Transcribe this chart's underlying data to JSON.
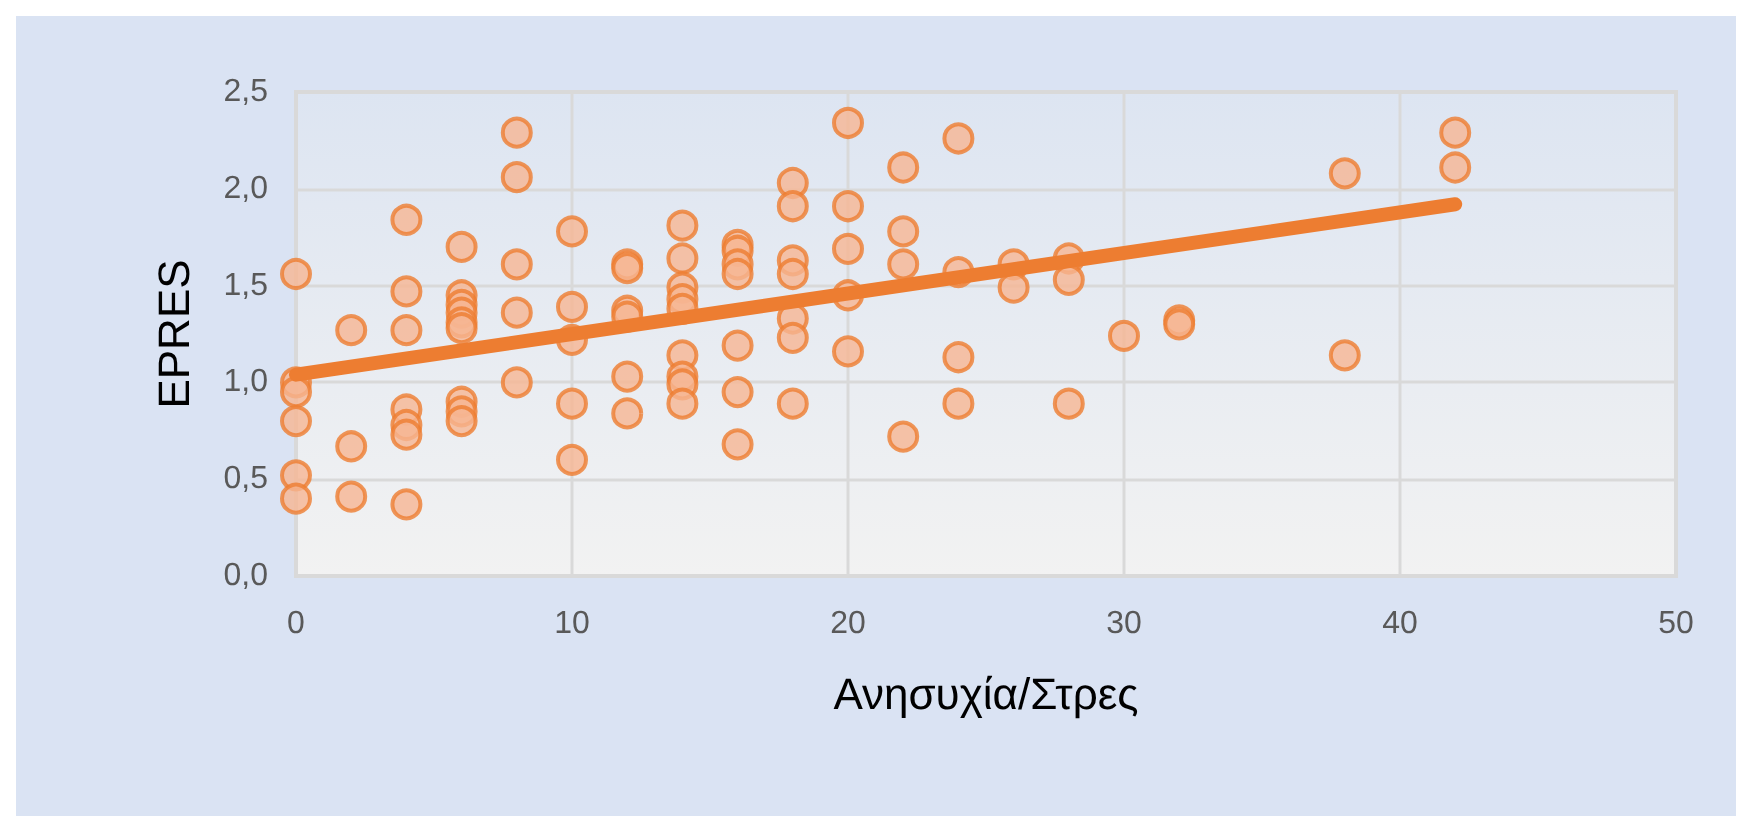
{
  "chart_data": {
    "type": "scatter",
    "xlabel": "Ανησυχία/Στρες",
    "ylabel": "EPRES",
    "xlim": [
      0,
      50
    ],
    "xticks": [
      0,
      10,
      20,
      30,
      40,
      50
    ],
    "ylim": [
      0,
      2.5
    ],
    "yticks": [
      {
        "value": 0,
        "label": "0,0"
      },
      {
        "value": 0.5,
        "label": "0,5"
      },
      {
        "value": 1,
        "label": "1,0"
      },
      {
        "value": 1.5,
        "label": "1,5"
      },
      {
        "value": 2,
        "label": "2,0"
      },
      {
        "value": 2.5,
        "label": "2,5"
      }
    ],
    "grid": true,
    "marker": "circle",
    "series": [
      {
        "color": "#ed7d31",
        "x": [
          0,
          0,
          0,
          0,
          0,
          0,
          2,
          2,
          2,
          4,
          4,
          4,
          4,
          4,
          4,
          4,
          6,
          6,
          6,
          6,
          6,
          6,
          6,
          6,
          6,
          8,
          8,
          8,
          8,
          8,
          10,
          10,
          10,
          10,
          10,
          12,
          12,
          12,
          12,
          12,
          12,
          14,
          14,
          14,
          14,
          14,
          14,
          14,
          14,
          14,
          16,
          16,
          16,
          16,
          16,
          16,
          16,
          18,
          18,
          18,
          18,
          18,
          18,
          18,
          20,
          20,
          20,
          20,
          20,
          22,
          22,
          22,
          22,
          24,
          24,
          24,
          24,
          26,
          26,
          28,
          28,
          28,
          30,
          32,
          32,
          38,
          38,
          42,
          42
        ],
        "values": [
          1.56,
          1.0,
          0.95,
          0.8,
          0.52,
          0.4,
          1.27,
          0.67,
          0.41,
          1.84,
          1.47,
          1.27,
          0.86,
          0.78,
          0.73,
          0.37,
          1.7,
          1.45,
          1.4,
          1.36,
          1.31,
          1.28,
          0.9,
          0.85,
          0.8,
          2.29,
          2.06,
          1.61,
          1.36,
          1.0,
          1.78,
          1.39,
          1.22,
          0.89,
          0.6,
          1.61,
          1.59,
          1.37,
          1.34,
          1.03,
          0.84,
          1.81,
          1.64,
          1.49,
          1.43,
          1.38,
          1.14,
          1.03,
          0.99,
          0.89,
          1.71,
          1.68,
          1.61,
          1.56,
          1.19,
          0.95,
          0.68,
          2.03,
          1.91,
          1.63,
          1.56,
          1.33,
          1.23,
          0.89,
          2.34,
          1.91,
          1.69,
          1.45,
          1.16,
          2.11,
          1.78,
          1.61,
          0.72,
          2.26,
          1.57,
          1.13,
          0.89,
          1.61,
          1.49,
          1.64,
          1.53,
          0.89,
          1.24,
          1.32,
          1.3,
          2.08,
          1.14,
          2.29,
          2.11
        ]
      },
      {
        "type": "line",
        "color": "#ed7d31",
        "marker": "none",
        "x": [
          0,
          42
        ],
        "values": [
          1.04,
          1.92
        ]
      }
    ]
  }
}
